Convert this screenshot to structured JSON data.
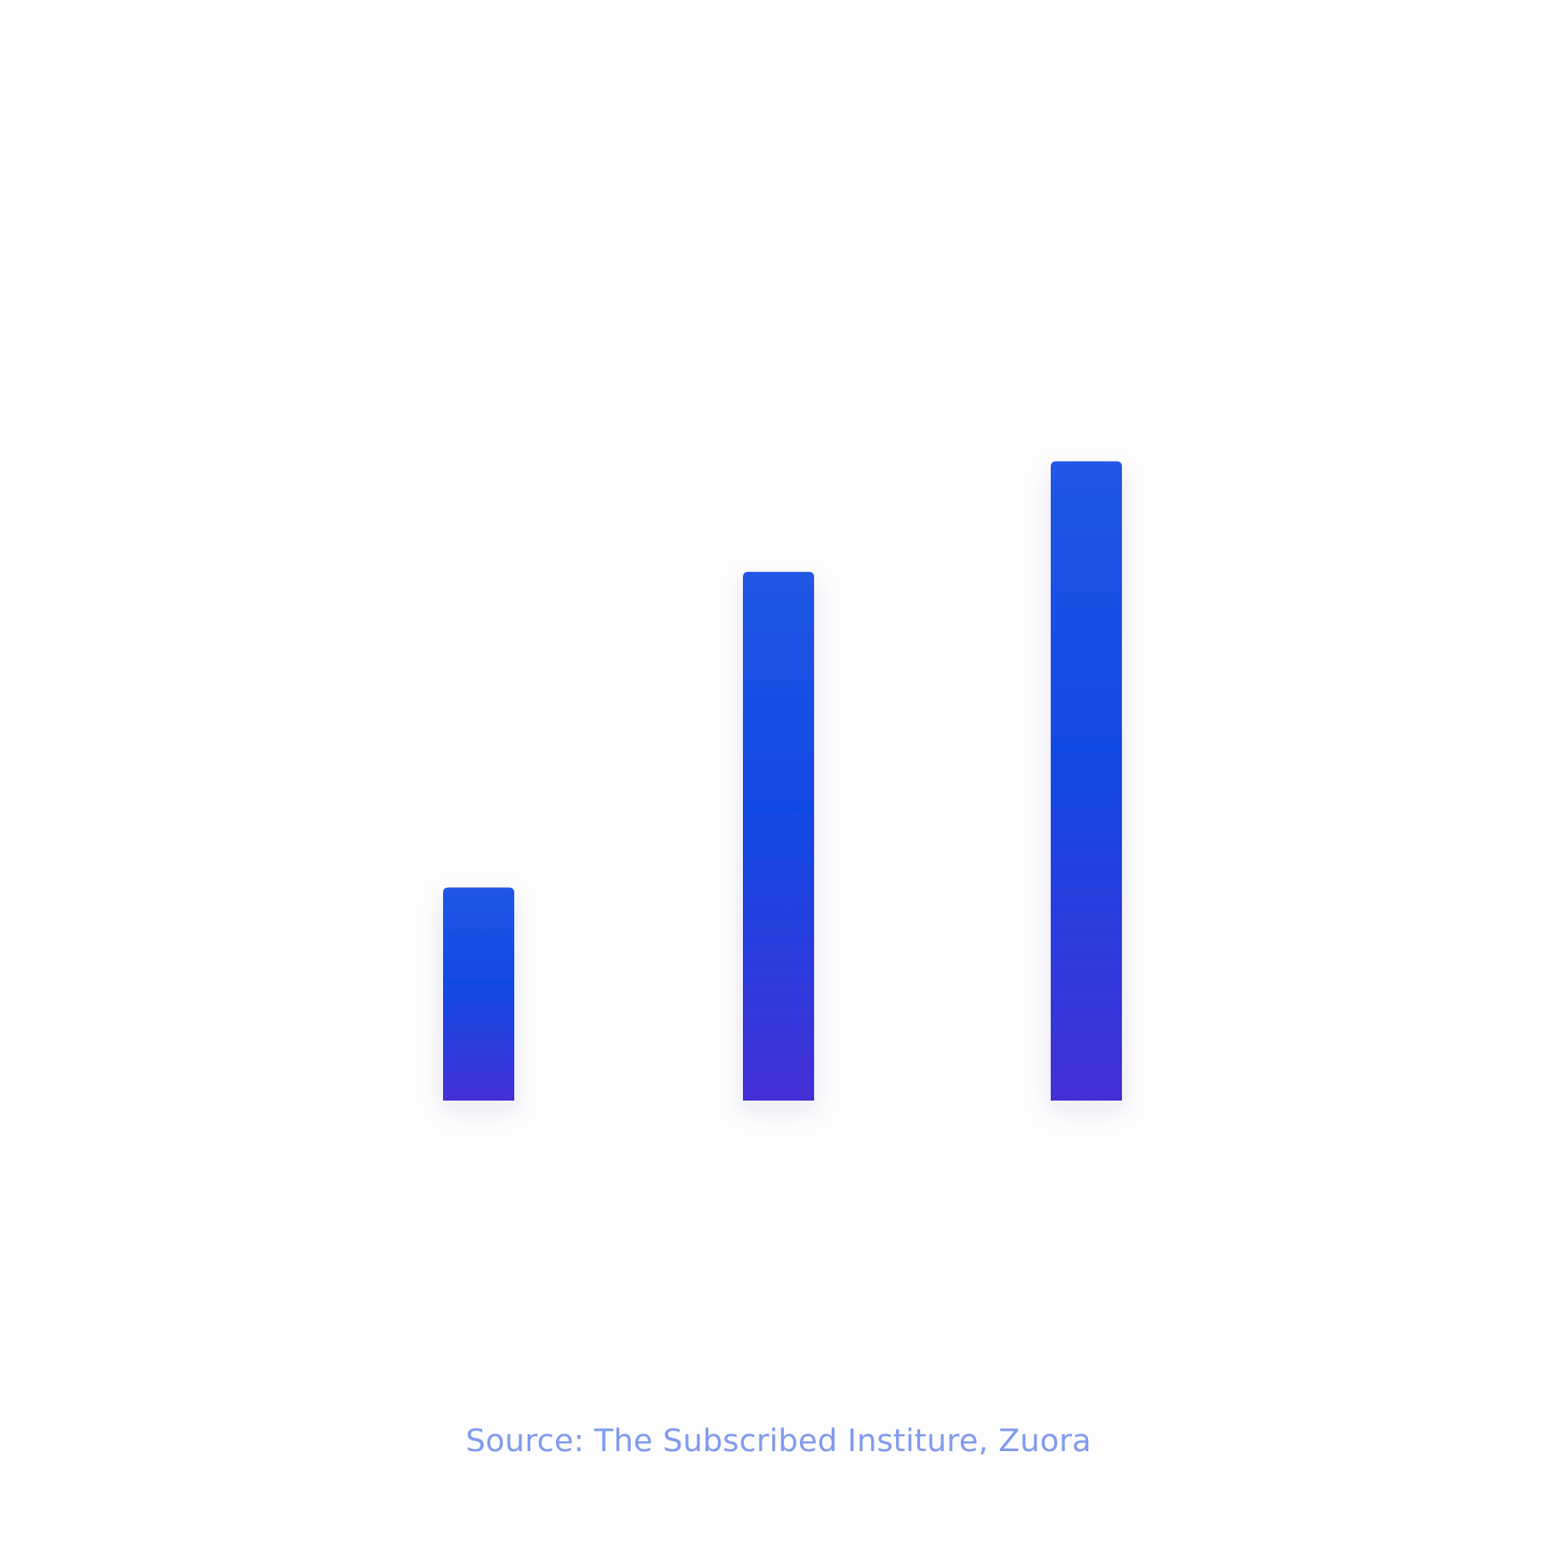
{
  "chart_data": {
    "type": "bar",
    "categories": [
      "",
      "",
      ""
    ],
    "values": [
      27,
      67,
      81
    ],
    "title": "",
    "xlabel": "",
    "ylabel": "",
    "ylim": [
      0,
      100
    ],
    "grid": false,
    "legend": "none"
  },
  "source": {
    "text": "Source: The Subscribed Institure, Zuora"
  },
  "colors": {
    "bar_top": "#2156e4",
    "bar_mid": "#114ae3",
    "bar_bottom": "#432fd6",
    "source_text": "#7f9af0",
    "background": "#fdfdfd"
  }
}
